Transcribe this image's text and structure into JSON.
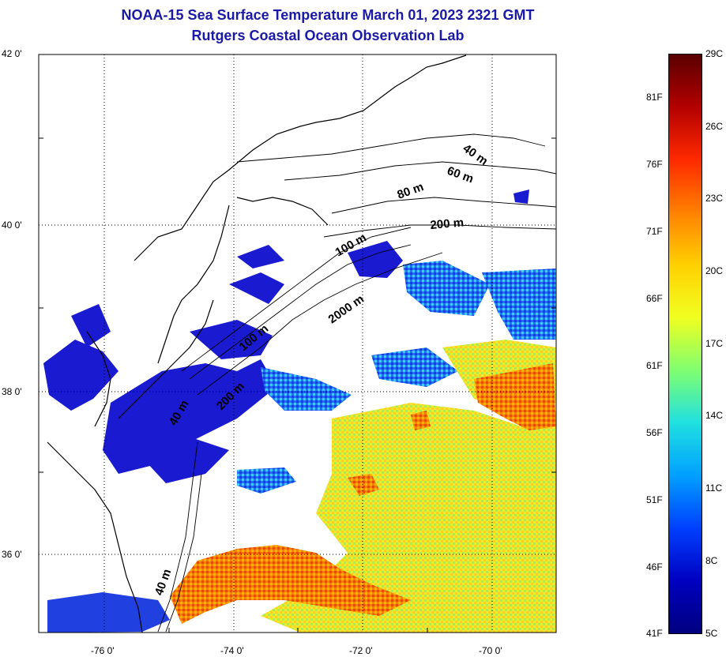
{
  "title": {
    "line1": "NOAA-15 Sea Surface Temperature March 01, 2023 2321 GMT",
    "line2": "Rutgers Coastal Ocean Observation Lab"
  },
  "lat_labels": [
    "42 0'",
    "40 0'",
    "38 0'",
    "36 0'"
  ],
  "lon_labels": [
    "-76 0'",
    "-74 0'",
    "-72 0'",
    "-70 0'"
  ],
  "depth_labels": [
    "40 m",
    "60 m",
    "80 m",
    "200 m",
    "100 m",
    "2000 m",
    "100 m",
    "200 m",
    "40 m",
    "40 m"
  ],
  "colorbar": {
    "celsius": [
      "29C",
      "26C",
      "23C",
      "20C",
      "17C",
      "14C",
      "11C",
      "8C",
      "5C"
    ],
    "fahrenheit": [
      "81F",
      "76F",
      "71F",
      "66F",
      "61F",
      "56F",
      "51F",
      "46F",
      "41F"
    ],
    "colors": [
      "#5a0000",
      "#b30000",
      "#ff2a00",
      "#ff8000",
      "#ffd000",
      "#f0ff20",
      "#80ff70",
      "#20e0e0",
      "#00a0ff",
      "#0040ff",
      "#0000c0",
      "#000080"
    ]
  }
}
